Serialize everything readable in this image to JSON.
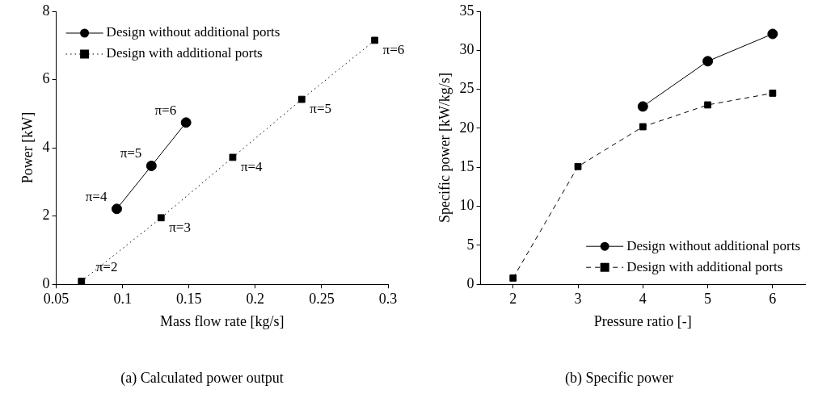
{
  "chart_data": [
    {
      "type": "line",
      "title": "(a) Calculated power output",
      "xlabel": "Mass flow rate [kg/s]",
      "ylabel": "Power [kW]",
      "xlim": [
        0.05,
        0.3
      ],
      "xticks": [
        0.05,
        0.1,
        0.15,
        0.2,
        0.25,
        0.3
      ],
      "ylim": [
        0,
        8
      ],
      "yticks": [
        0,
        2,
        4,
        6,
        8
      ],
      "grid": false,
      "legend": "top left",
      "series": [
        {
          "name": "Design without additional ports",
          "color": "#000000",
          "marker": "circle",
          "line_style": "solid",
          "x": [
            0.0956,
            0.1217,
            0.1478
          ],
          "values": [
            2.21,
            3.47,
            4.74
          ]
        },
        {
          "name": "Design with additional ports",
          "color": "#000000",
          "marker": "square",
          "line_style": "dotted",
          "x": [
            0.069,
            0.129,
            0.183,
            0.235,
            0.29
          ],
          "values": [
            0.09,
            1.95,
            3.72,
            5.42,
            7.15
          ]
        }
      ],
      "annotations": [
        {
          "text": "π=4",
          "x": 0.0956,
          "y": 2.21
        },
        {
          "text": "π=5",
          "x": 0.1217,
          "y": 3.47
        },
        {
          "text": "π=6",
          "x": 0.1478,
          "y": 4.74
        },
        {
          "text": "π=2",
          "x": 0.069,
          "y": 0.09
        },
        {
          "text": "π=3",
          "x": 0.129,
          "y": 1.95
        },
        {
          "text": "π=4",
          "x": 0.183,
          "y": 3.72
        },
        {
          "text": "π=5",
          "x": 0.235,
          "y": 5.42
        },
        {
          "text": "π=6",
          "x": 0.29,
          "y": 7.15
        }
      ]
    },
    {
      "type": "line",
      "title": "(b) Specific power",
      "xlabel": "Pressure ratio [-]",
      "ylabel": "Specific power [kW/kg/s]",
      "xlim": [
        1.5,
        6.5
      ],
      "xticks": [
        2,
        3,
        4,
        5,
        6
      ],
      "ylim": [
        0,
        35
      ],
      "yticks": [
        0,
        5,
        10,
        15,
        20,
        25,
        30,
        35
      ],
      "grid": false,
      "legend": "bottom right",
      "series": [
        {
          "name": "Design without additional ports",
          "color": "#000000",
          "marker": "circle",
          "line_style": "solid",
          "x": [
            4,
            5,
            6
          ],
          "values": [
            22.8,
            28.6,
            32.1
          ]
        },
        {
          "name": "Design with additional ports",
          "color": "#000000",
          "marker": "square",
          "line_style": "dashed",
          "x": [
            2,
            3,
            4,
            5,
            6
          ],
          "values": [
            0.8,
            15.1,
            20.2,
            23.0,
            24.5
          ]
        }
      ]
    }
  ]
}
